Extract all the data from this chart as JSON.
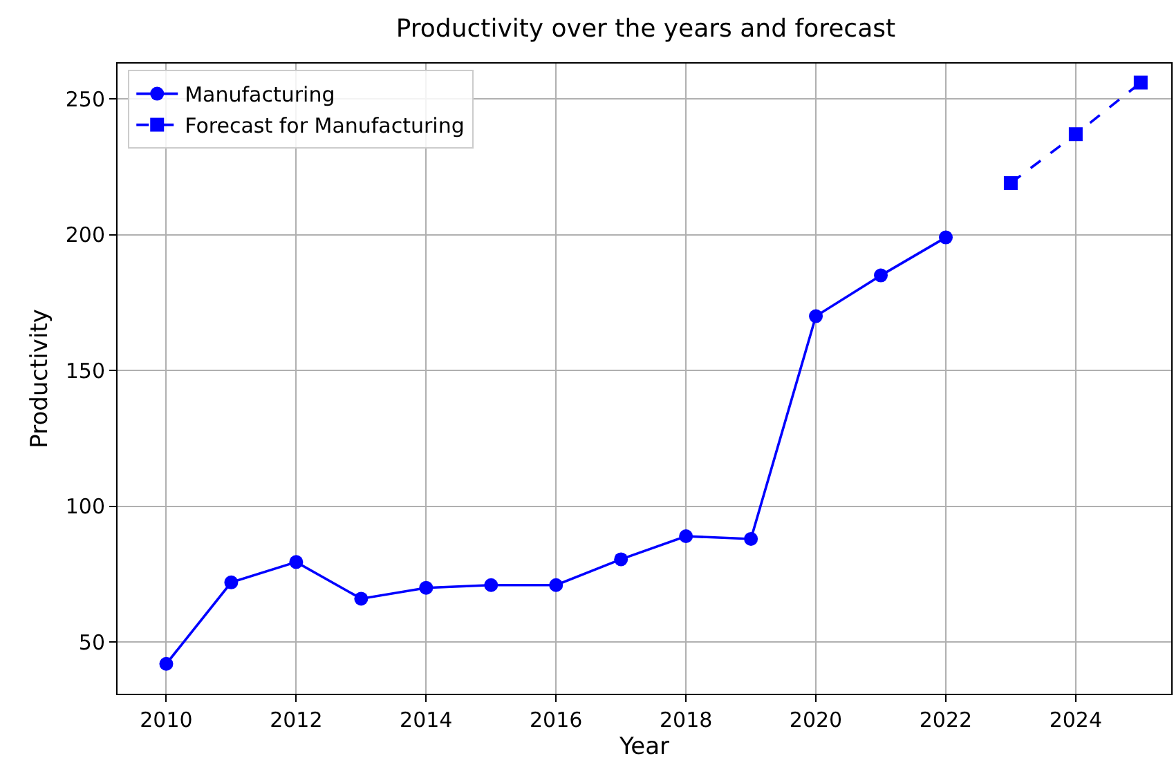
{
  "chart_data": {
    "type": "line",
    "title": "Productivity over the years and forecast",
    "xlabel": "Year",
    "ylabel": "Productivity",
    "xlim": [
      2009.25,
      2025.47
    ],
    "xticks": [
      2010,
      2012,
      2014,
      2016,
      2018,
      2020,
      2022,
      2024
    ],
    "ylim": [
      31,
      263
    ],
    "yticks": [
      50,
      100,
      150,
      200,
      250
    ],
    "grid": true,
    "legend": "top left",
    "series": [
      {
        "name": "Manufacturing",
        "color": "#0000ff",
        "marker": "circle",
        "line_style": "solid",
        "x": [
          2010,
          2011,
          2012,
          2013,
          2014,
          2015,
          2016,
          2017,
          2018,
          2019,
          2020,
          2021,
          2022
        ],
        "values": [
          42,
          72,
          79.5,
          66,
          70,
          71,
          71,
          80.5,
          89,
          88,
          170,
          185,
          199
        ]
      },
      {
        "name": "Forecast for Manufacturing",
        "color": "#0000ff",
        "marker": "square",
        "line_style": "dashed",
        "x": [
          2023,
          2024,
          2025
        ],
        "values": [
          219,
          237,
          256
        ]
      }
    ]
  }
}
